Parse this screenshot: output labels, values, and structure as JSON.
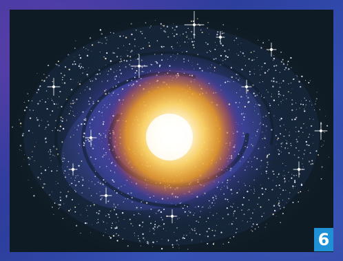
{
  "image": {
    "subject": "spiral-galaxy",
    "colors": {
      "border": "#3b3aa0",
      "space": "#0f1b24",
      "arm_blue": "#4d5cc4",
      "arm_violet": "#6a2a8e",
      "core_outer": "#f0a020",
      "core_inner": "#fff8e0",
      "badge_bg": "#1f8fd6",
      "badge_text": "#ffffff"
    }
  },
  "badge": {
    "label": "6"
  }
}
